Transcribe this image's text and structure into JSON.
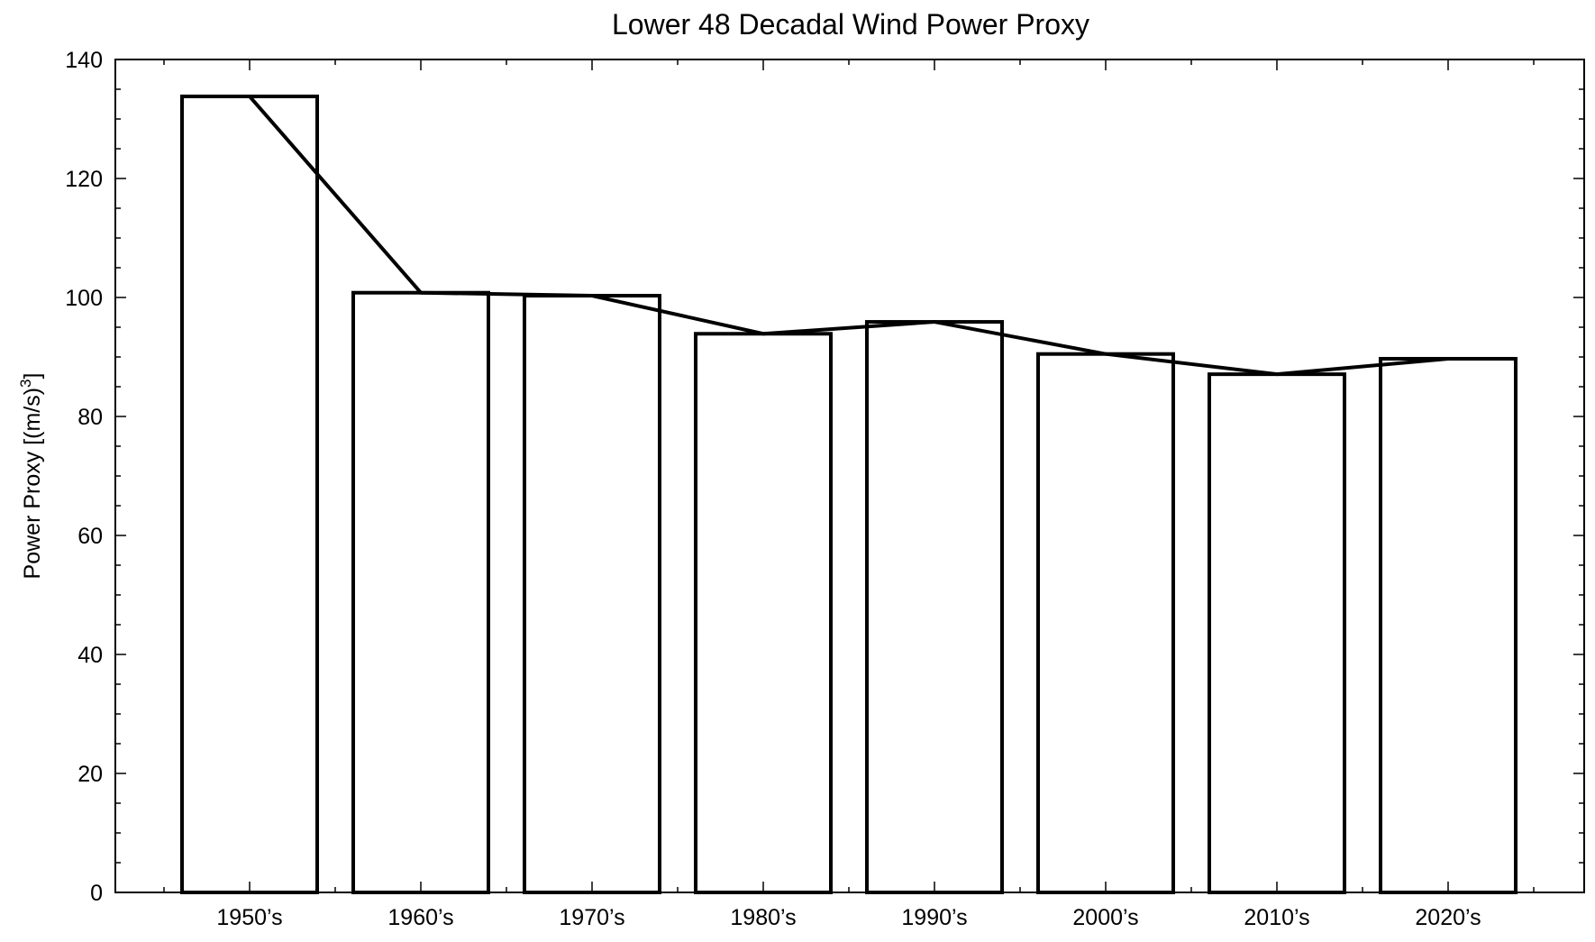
{
  "chart_data": {
    "type": "bar",
    "title": "Lower 48 Decadal Wind Power Proxy",
    "xlabel": "",
    "ylabel": "Power Proxy [(m/s)",
    "ylabel_superscript": "3",
    "ylabel_suffix": "]",
    "categories": [
      "1950’s",
      "1960’s",
      "1970’s",
      "1980’s",
      "1990’s",
      "2000’s",
      "2010’s",
      "2020’s"
    ],
    "values": [
      133.8,
      100.8,
      100.3,
      93.9,
      95.9,
      90.5,
      87.1,
      89.7
    ],
    "overlay": "line through bar tops",
    "ylim": [
      0,
      140
    ],
    "yticks": [
      0,
      20,
      40,
      60,
      80,
      100,
      120,
      140
    ],
    "grid": false,
    "legend": "none",
    "colors": {
      "bar_fill": "#ffffff",
      "stroke": "#000000"
    }
  }
}
